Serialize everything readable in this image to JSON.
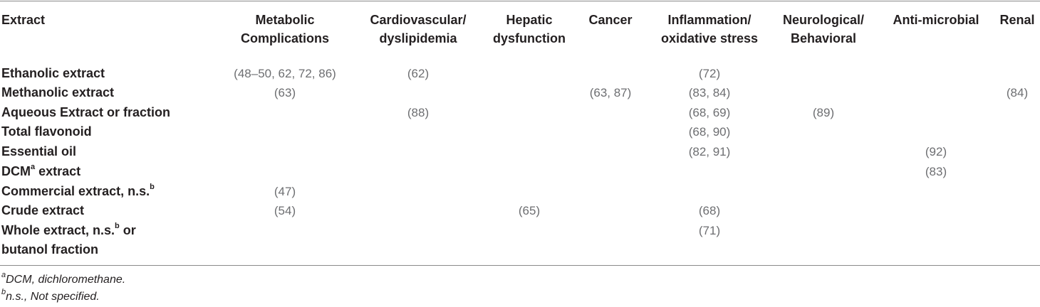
{
  "table": {
    "columns": [
      {
        "lines": [
          "Extract"
        ]
      },
      {
        "lines": [
          "Metabolic",
          "Complications"
        ]
      },
      {
        "lines": [
          "Cardiovascular/",
          "dyslipidemia"
        ]
      },
      {
        "lines": [
          "Hepatic",
          "dysfunction"
        ]
      },
      {
        "lines": [
          "Cancer"
        ]
      },
      {
        "lines": [
          "Inflammation/",
          "oxidative stress"
        ]
      },
      {
        "lines": [
          "Neurological/",
          "Behavioral"
        ]
      },
      {
        "lines": [
          "Anti-microbial"
        ]
      },
      {
        "lines": [
          "Renal"
        ]
      }
    ],
    "rows": [
      {
        "label": "Ethanolic extract",
        "sup": "",
        "suffix": "",
        "label2": "",
        "cells": [
          "(48–50, 62, 72, 86)",
          "(62)",
          "",
          "",
          "(72)",
          "",
          "",
          ""
        ]
      },
      {
        "label": "Methanolic extract",
        "sup": "",
        "suffix": "",
        "label2": "",
        "cells": [
          "(63)",
          "",
          "",
          "(63, 87)",
          "(83, 84)",
          "",
          "",
          "(84)"
        ]
      },
      {
        "label": "Aqueous Extract or fraction",
        "sup": "",
        "suffix": "",
        "label2": "",
        "cells": [
          "",
          "(88)",
          "",
          "",
          "(68, 69)",
          "(89)",
          "",
          ""
        ]
      },
      {
        "label": "Total flavonoid",
        "sup": "",
        "suffix": "",
        "label2": "",
        "cells": [
          "",
          "",
          "",
          "",
          "(68, 90)",
          "",
          "",
          ""
        ]
      },
      {
        "label": "Essential oil",
        "sup": "",
        "suffix": "",
        "label2": "",
        "cells": [
          "",
          "",
          "",
          "",
          "(82, 91)",
          "",
          "(92)",
          ""
        ]
      },
      {
        "label": "DCM",
        "sup": "a",
        "suffix": " extract",
        "label2": "",
        "cells": [
          "",
          "",
          "",
          "",
          "",
          "",
          "(83)",
          ""
        ]
      },
      {
        "label": "Commercial extract, n.s.",
        "sup": "b",
        "suffix": "",
        "label2": "",
        "cells": [
          "(47)",
          "",
          "",
          "",
          "",
          "",
          "",
          ""
        ]
      },
      {
        "label": "Crude extract",
        "sup": "",
        "suffix": "",
        "label2": "",
        "cells": [
          "(54)",
          "",
          "(65)",
          "",
          "(68)",
          "",
          "",
          ""
        ]
      },
      {
        "label": "Whole extract, n.s.",
        "sup": "b",
        "suffix": " or",
        "label2": "butanol fraction",
        "cells": [
          "",
          "",
          "",
          "",
          "(71)",
          "",
          "",
          ""
        ]
      }
    ]
  },
  "footnotes": [
    {
      "sup": "a",
      "text": "DCM, dichloromethane."
    },
    {
      "sup": "b",
      "text": "n.s., Not specified."
    }
  ]
}
